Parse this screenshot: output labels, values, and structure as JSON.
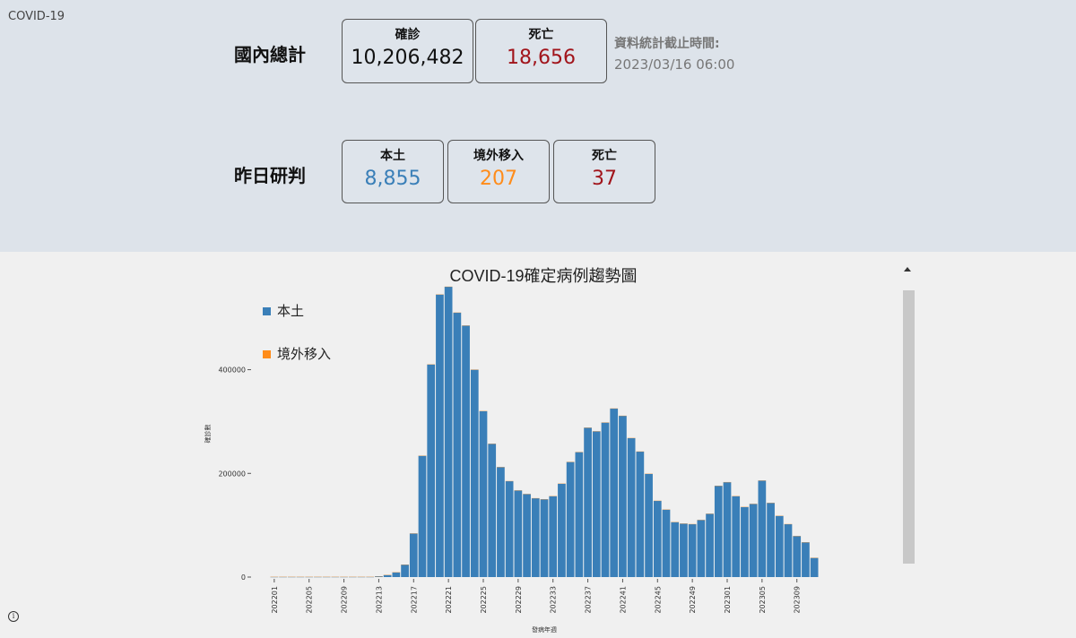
{
  "app": {
    "title": "COVID-19"
  },
  "totals": {
    "label": "國內總計",
    "confirmed": {
      "label": "確診",
      "value": "10,206,482"
    },
    "deaths": {
      "label": "死亡",
      "value": "18,656"
    },
    "asof_label": "資料統計截止時間:",
    "asof_time": "2023/03/16 06:00"
  },
  "yesterday": {
    "label": "昨日研判",
    "local": {
      "label": "本土",
      "value": "8,855"
    },
    "imported": {
      "label": "境外移入",
      "value": "207"
    },
    "deaths": {
      "label": "死亡",
      "value": "37"
    }
  },
  "colors": {
    "local": "#3a7fb8",
    "imported": "#ff8c1a",
    "death": "#a1141b",
    "gray_text": "#777777"
  },
  "icons": {
    "info": "info-icon",
    "scroll_up": "scroll-up-icon"
  },
  "chart_data": {
    "type": "bar",
    "title": "COVID-19確定病例趨勢圖",
    "xlabel": "發病年週",
    "ylabel": "確診數",
    "ylim": [
      0,
      560000
    ],
    "yticks": [
      0,
      200000,
      400000
    ],
    "ytick_labels": [
      "0",
      "200000",
      "400000"
    ],
    "legend_position": "top-left",
    "grid": false,
    "categories": [
      "202201",
      "202202",
      "202203",
      "202204",
      "202205",
      "202206",
      "202207",
      "202208",
      "202209",
      "202210",
      "202211",
      "202212",
      "202213",
      "202214",
      "202215",
      "202216",
      "202217",
      "202218",
      "202219",
      "202220",
      "202221",
      "202222",
      "202223",
      "202224",
      "202225",
      "202226",
      "202227",
      "202228",
      "202229",
      "202230",
      "202231",
      "202232",
      "202233",
      "202234",
      "202235",
      "202236",
      "202237",
      "202238",
      "202239",
      "202240",
      "202241",
      "202242",
      "202243",
      "202244",
      "202245",
      "202246",
      "202247",
      "202248",
      "202249",
      "202250",
      "202251",
      "202252",
      "202301",
      "202302",
      "202303",
      "202304",
      "202305",
      "202306",
      "202307",
      "202308",
      "202309",
      "202310",
      "202311"
    ],
    "xtick_labels": [
      "202201",
      "202205",
      "202209",
      "202213",
      "202217",
      "202221",
      "202225",
      "202229",
      "202233",
      "202237",
      "202241",
      "202245",
      "202249",
      "202301",
      "202305",
      "202309"
    ],
    "series": [
      {
        "name": "本土",
        "color": "#3a7fb8",
        "values": [
          300,
          300,
          300,
          300,
          300,
          300,
          300,
          300,
          300,
          300,
          300,
          300,
          1500,
          4000,
          9000,
          24000,
          84000,
          234000,
          410000,
          545000,
          560000,
          510000,
          485000,
          400000,
          320000,
          257000,
          212000,
          185000,
          167000,
          160000,
          152000,
          150000,
          156000,
          180000,
          222000,
          241000,
          288000,
          281000,
          298000,
          325000,
          311000,
          268000,
          242000,
          199000,
          147000,
          130000,
          106000,
          103000,
          102000,
          110000,
          122000,
          176000,
          183000,
          156000,
          135000,
          141000,
          186000,
          143000,
          118000,
          102000,
          79000,
          67000,
          37000
        ]
      },
      {
        "name": "境外移入",
        "color": "#ff8c1a",
        "values": [
          150,
          150,
          150,
          150,
          150,
          150,
          150,
          150,
          150,
          150,
          150,
          150,
          150,
          150,
          150,
          200,
          200,
          200,
          200,
          200,
          250,
          250,
          250,
          250,
          250,
          250,
          250,
          250,
          250,
          300,
          300,
          300,
          300,
          300,
          300,
          300,
          300,
          300,
          300,
          300,
          300,
          300,
          300,
          300,
          300,
          300,
          300,
          300,
          300,
          300,
          300,
          300,
          300,
          300,
          300,
          300,
          300,
          300,
          300,
          300,
          300,
          300,
          300
        ]
      }
    ]
  }
}
